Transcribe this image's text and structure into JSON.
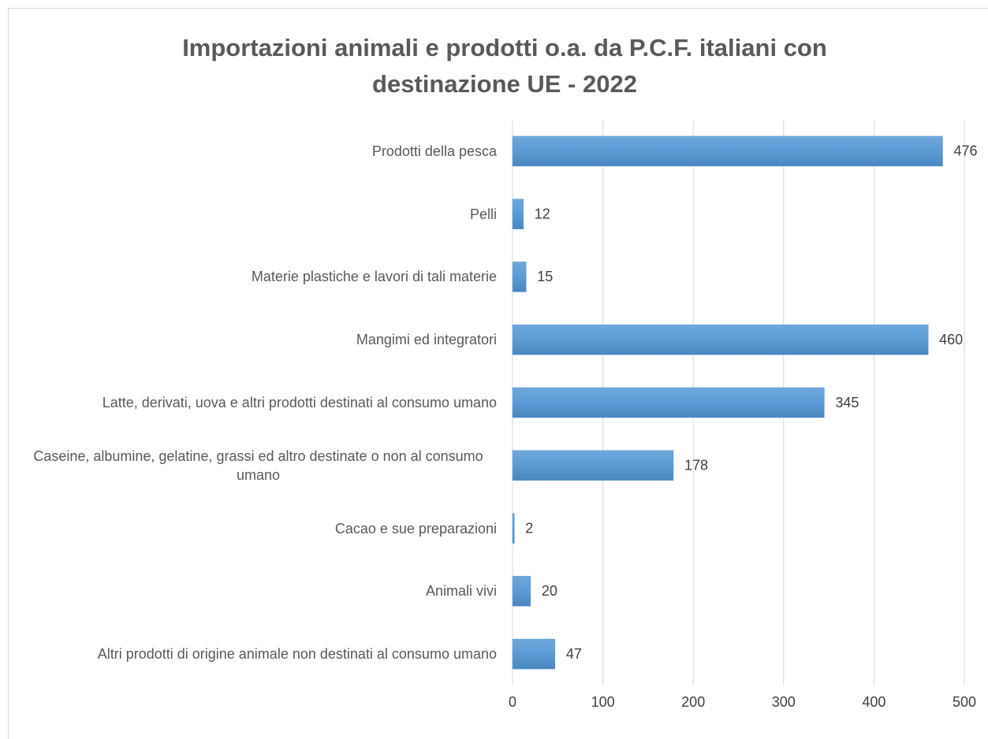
{
  "chart_data": {
    "type": "bar",
    "orientation": "horizontal",
    "title": "Importazioni animali e prodotti o.a. da P.C.F. italiani con destinazione UE - 2022",
    "categories": [
      "Prodotti della pesca",
      "Pelli",
      "Materie plastiche e lavori di tali materie",
      "Mangimi ed integratori",
      "Latte, derivati, uova e altri prodotti destinati al consumo umano",
      "Caseine, albumine, gelatine, grassi ed altro destinate o non al consumo umano",
      "Cacao e sue preparazioni",
      "Animali vivi",
      "Altri prodotti di origine animale non destinati al consumo umano"
    ],
    "values": [
      476,
      12,
      15,
      460,
      345,
      178,
      2,
      20,
      47
    ],
    "color": "#5b9bd5",
    "xlim": [
      0,
      500
    ],
    "xticks": [
      0,
      100,
      200,
      300,
      400,
      500
    ],
    "grid": true
  }
}
